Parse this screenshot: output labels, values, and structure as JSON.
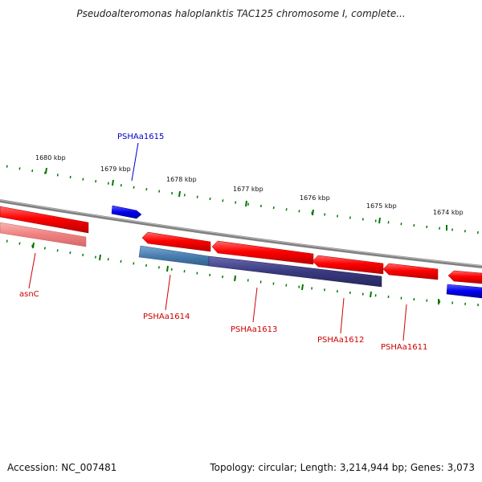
{
  "title": "Pseudoalteromonas haloplanktis TAC125 chromosome I, complete...",
  "footer": {
    "accession": "Accession: NC_007481",
    "summary": "Topology: circular; Length: 3,214,944 bp; Genes: 3,073"
  },
  "colors": {
    "forward_gene": "#ff0000",
    "reverse_gene_light": "#f08080",
    "forward_highlight": "#0000ee",
    "reverse_highlight_steel": "#4a7fb0",
    "reverse_highlight_navy": "#3a3a80",
    "backbone": "#808080",
    "tick": "#007700",
    "label_red": "#cc0000",
    "label_blue": "#0000cc"
  },
  "scale_labels": [
    "1680 kbp",
    "1679 kbp",
    "1678 kbp",
    "1677 kbp",
    "1676 kbp",
    "1675 kbp",
    "1674 kbp"
  ],
  "gene_labels": {
    "pshaa1615": "PSHAa1615",
    "asnc": "asnC",
    "pshaa1614": "PSHAa1614",
    "pshaa1613": "PSHAa1613",
    "pshaa1612": "PSHAa1612",
    "pshaa1611": "PSHAa1611"
  }
}
